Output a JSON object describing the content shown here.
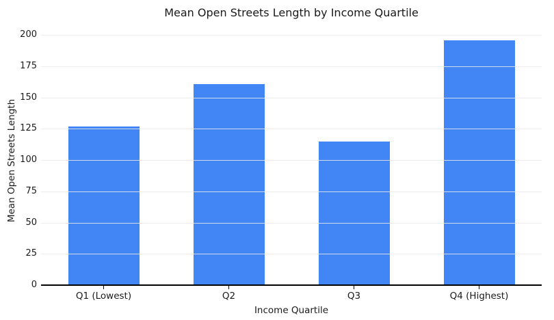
{
  "chart_data": {
    "type": "bar",
    "title": "Mean Open Streets Length by Income Quartile",
    "xlabel": "Income Quartile",
    "ylabel": "Mean Open Streets Length",
    "categories": [
      "Q1 (Lowest)",
      "Q2",
      "Q3",
      "Q4 (Highest)"
    ],
    "values": [
      126,
      160,
      114,
      195
    ],
    "ylim": [
      0,
      200
    ],
    "yticks": [
      0,
      25,
      50,
      75,
      100,
      125,
      150,
      175,
      200
    ],
    "legend": "none",
    "grid": "horizontal",
    "colors": {
      "bar": "#4285f4",
      "grid": "rgba(234,234,234,0.85)",
      "axis": "#000000",
      "text": "#1a1a1a",
      "background": "#ffffff"
    }
  }
}
